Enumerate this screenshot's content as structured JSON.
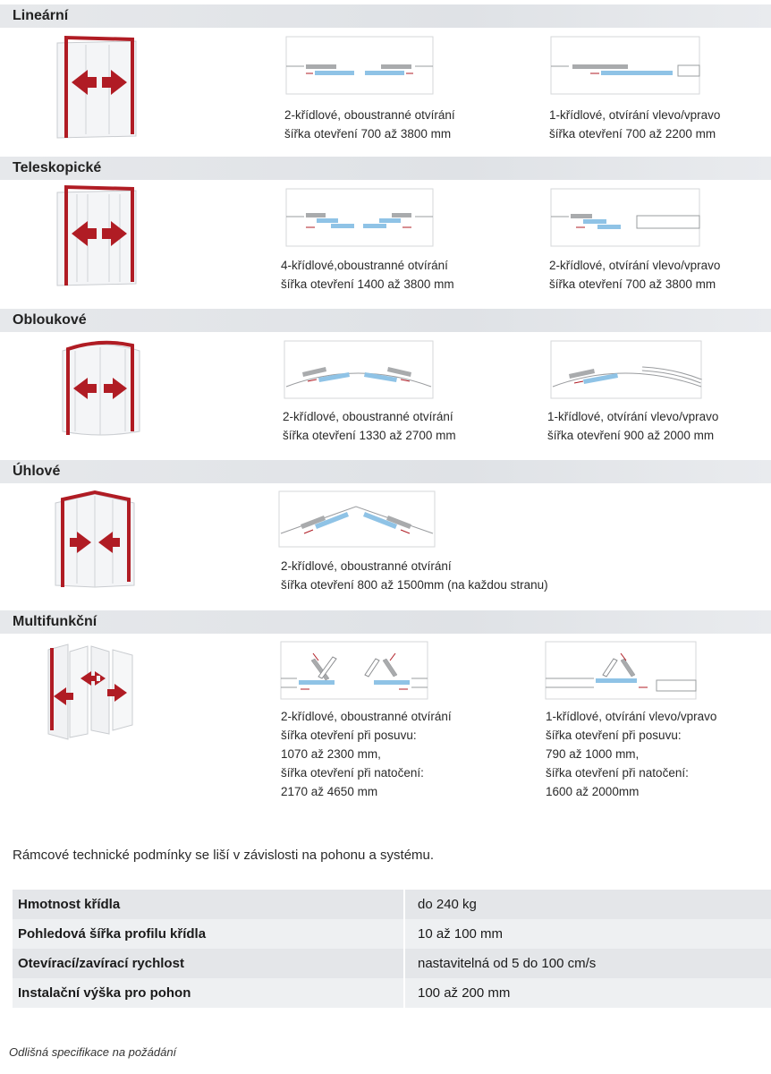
{
  "sections": [
    {
      "title": "Lineární",
      "left": {
        "line1": "2-křídlové, oboustranné otvírání",
        "line2": "šířka otevření 700 až 3800 mm"
      },
      "right": {
        "line1": "1-křídlové, otvírání vlevo/vpravo",
        "line2": "šířka otevření 700 až 2200 mm"
      }
    },
    {
      "title": "Teleskopické",
      "left": {
        "line1": "4-křídlové,oboustranné otvírání",
        "line2": "šířka otevření 1400 až 3800 mm"
      },
      "right": {
        "line1": "2-křídlové, otvírání vlevo/vpravo",
        "line2": "šířka otevření 700 až 3800 mm"
      }
    },
    {
      "title": "Obloukové",
      "left": {
        "line1": "2-křídlové, oboustranné otvírání",
        "line2": "šířka otevření 1330 až 2700 mm"
      },
      "right": {
        "line1": "1-křídlové, otvírání vlevo/vpravo",
        "line2": "šířka otevření 900 až 2000 mm"
      }
    },
    {
      "title": "Úhlové",
      "left": {
        "line1": "2-křídlové, oboustranné otvírání",
        "line2": "šířka otevření 800 až 1500mm (na každou stranu)"
      }
    },
    {
      "title": "Multifunkční",
      "left": {
        "line1": "2-křídlové, oboustranné otvírání",
        "line2": "šířka otevření při posuvu:",
        "line3": "1070 až 2300 mm,",
        "line4": "šířka otevření při natočení:",
        "line5": "2170 až 4650 mm"
      },
      "right": {
        "line1": "1-křídlové, otvírání vlevo/vpravo",
        "line2": "šířka otevření při posuvu:",
        "line3": "790 až 1000 mm,",
        "line4": "šířka otevření při natočení:",
        "line5": "1600 až 2000mm"
      }
    }
  ],
  "note": "Rámcové technické podmínky se liší v závislosti na pohonu a systému.",
  "specs": [
    {
      "label": "Hmotnost křídla",
      "value": "do 240 kg"
    },
    {
      "label": "Pohledová šířka profilu křídla",
      "value": "10 až 100 mm"
    },
    {
      "label": "Otevírací/zavírací rychlost",
      "value": "nastavitelná od 5 do 100 cm/s"
    },
    {
      "label": "Instalační výška pro pohon",
      "value": "100 až 200 mm"
    }
  ],
  "footnote": "Odlišná specifikace na požádání",
  "colors": {
    "frame_red": "#b01c24",
    "leaf_blue": "#8fc3e6",
    "leaf_grey": "#a9abad",
    "band": "#e2e5e8"
  }
}
